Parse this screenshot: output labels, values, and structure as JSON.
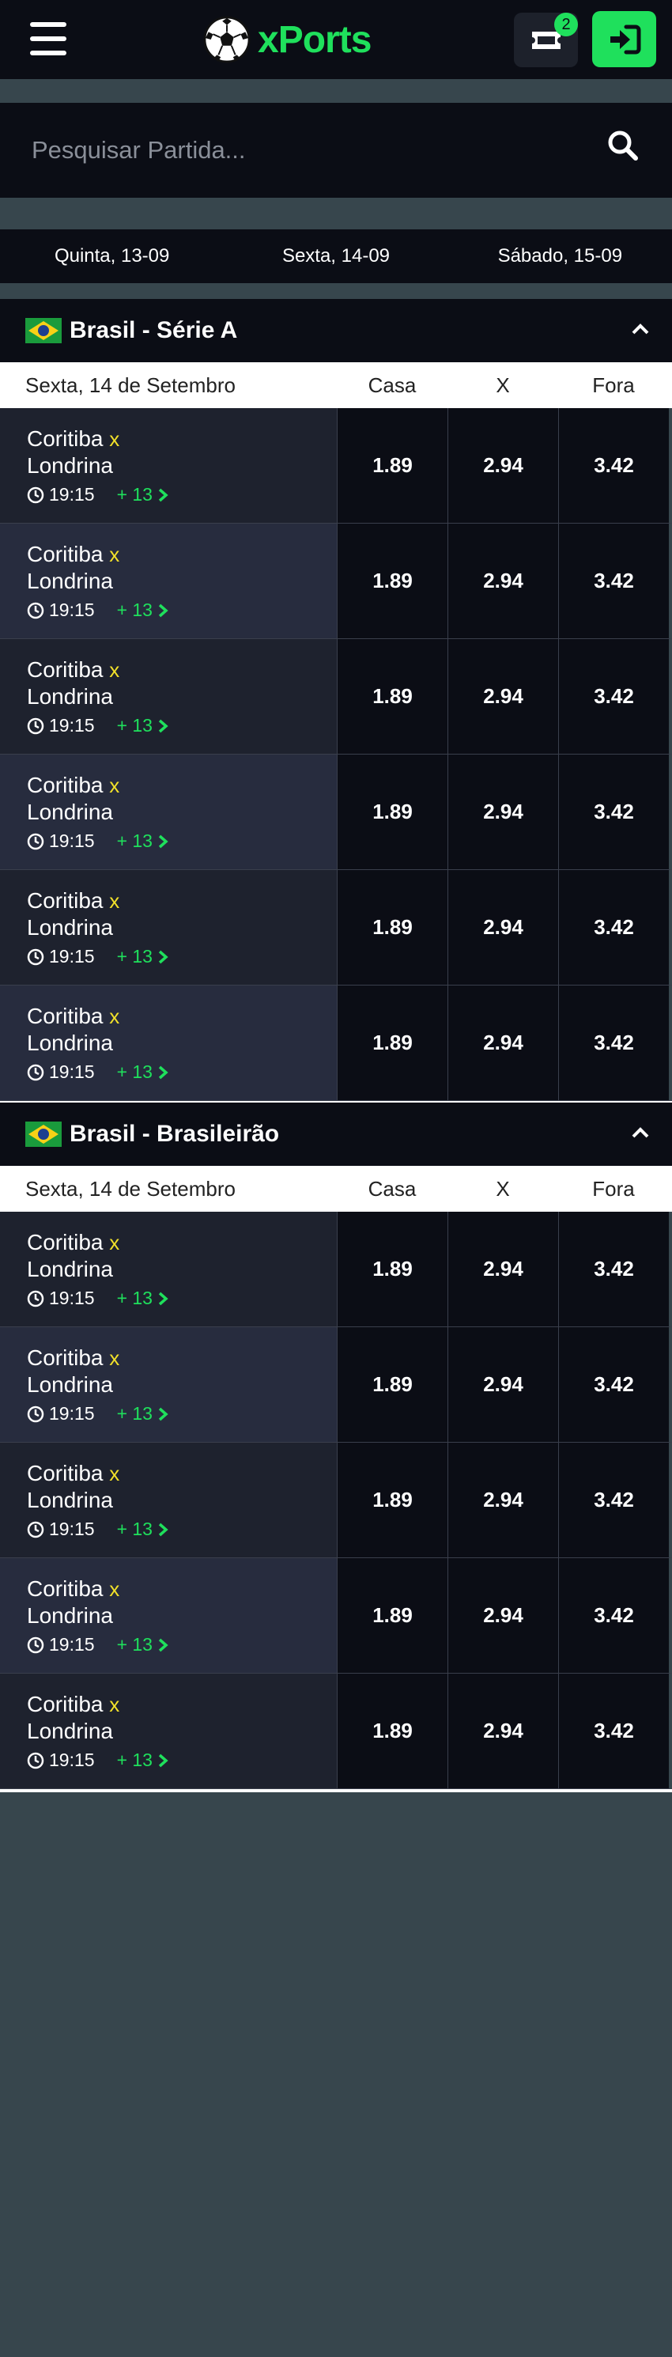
{
  "header": {
    "brand": "xPorts",
    "ticket_count": "2"
  },
  "search": {
    "placeholder": "Pesquisar Partida..."
  },
  "date_tabs": [
    "Quinta, 13-09",
    "Sexta, 14-09",
    "Sábado, 15-09"
  ],
  "leagues": [
    {
      "title": "Brasil - Série A",
      "date": "Sexta, 14 de Setembro",
      "col_home": "Casa",
      "col_draw": "X",
      "col_away": "Fora",
      "matches": [
        {
          "home": "Coritiba",
          "vs": "x",
          "away": "Londrina",
          "time": "19:15",
          "more": "+ 13",
          "odd_home": "1.89",
          "odd_draw": "2.94",
          "odd_away": "3.42"
        },
        {
          "home": "Coritiba",
          "vs": "x",
          "away": "Londrina",
          "time": "19:15",
          "more": "+ 13",
          "odd_home": "1.89",
          "odd_draw": "2.94",
          "odd_away": "3.42"
        },
        {
          "home": "Coritiba",
          "vs": "x",
          "away": "Londrina",
          "time": "19:15",
          "more": "+ 13",
          "odd_home": "1.89",
          "odd_draw": "2.94",
          "odd_away": "3.42"
        },
        {
          "home": "Coritiba",
          "vs": "x",
          "away": "Londrina",
          "time": "19:15",
          "more": "+ 13",
          "odd_home": "1.89",
          "odd_draw": "2.94",
          "odd_away": "3.42"
        },
        {
          "home": "Coritiba",
          "vs": "x",
          "away": "Londrina",
          "time": "19:15",
          "more": "+ 13",
          "odd_home": "1.89",
          "odd_draw": "2.94",
          "odd_away": "3.42"
        },
        {
          "home": "Coritiba",
          "vs": "x",
          "away": "Londrina",
          "time": "19:15",
          "more": "+ 13",
          "odd_home": "1.89",
          "odd_draw": "2.94",
          "odd_away": "3.42"
        }
      ]
    },
    {
      "title": "Brasil - Brasileirão",
      "date": "Sexta, 14 de Setembro",
      "col_home": "Casa",
      "col_draw": "X",
      "col_away": "Fora",
      "matches": [
        {
          "home": "Coritiba",
          "vs": "x",
          "away": "Londrina",
          "time": "19:15",
          "more": "+ 13",
          "odd_home": "1.89",
          "odd_draw": "2.94",
          "odd_away": "3.42"
        },
        {
          "home": "Coritiba",
          "vs": "x",
          "away": "Londrina",
          "time": "19:15",
          "more": "+ 13",
          "odd_home": "1.89",
          "odd_draw": "2.94",
          "odd_away": "3.42"
        },
        {
          "home": "Coritiba",
          "vs": "x",
          "away": "Londrina",
          "time": "19:15",
          "more": "+ 13",
          "odd_home": "1.89",
          "odd_draw": "2.94",
          "odd_away": "3.42"
        },
        {
          "home": "Coritiba",
          "vs": "x",
          "away": "Londrina",
          "time": "19:15",
          "more": "+ 13",
          "odd_home": "1.89",
          "odd_draw": "2.94",
          "odd_away": "3.42"
        },
        {
          "home": "Coritiba",
          "vs": "x",
          "away": "Londrina",
          "time": "19:15",
          "more": "+ 13",
          "odd_home": "1.89",
          "odd_draw": "2.94",
          "odd_away": "3.42"
        }
      ]
    }
  ]
}
